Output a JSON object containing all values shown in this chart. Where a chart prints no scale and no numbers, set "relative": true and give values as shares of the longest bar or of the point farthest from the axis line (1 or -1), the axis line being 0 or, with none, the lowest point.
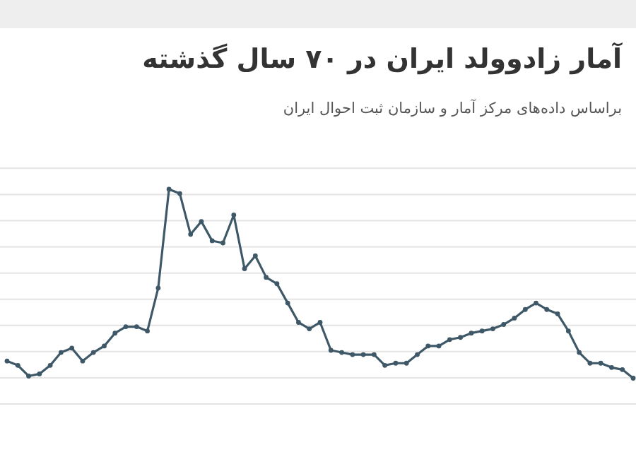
{
  "chart_data": {
    "type": "line",
    "title": "آمار زادوولد ایران در ۷۰ سال گذشته",
    "subtitle": "براساس داده‌های مرکز آمار و سازمان ثبت احوال ایران",
    "relative": true,
    "categories": [
      null,
      null,
      null,
      null,
      null,
      null,
      null,
      null,
      null,
      null,
      null,
      null,
      null,
      null,
      null,
      null,
      null,
      null,
      null,
      null,
      null,
      null,
      null,
      null,
      null,
      null,
      null,
      null,
      null,
      null,
      null,
      null,
      null,
      null,
      null,
      null,
      null,
      null,
      null,
      null,
      null,
      null,
      null,
      null,
      null,
      null,
      null,
      null,
      null,
      null,
      null,
      null,
      null,
      null,
      null,
      null,
      null,
      null,
      null
    ],
    "series": [
      {
        "color": "#3e5868",
        "values": [
          0.2,
          0.18,
          0.13,
          0.14,
          0.18,
          0.24,
          0.26,
          0.2,
          0.24,
          0.27,
          0.33,
          0.36,
          0.36,
          0.34,
          0.54,
          1,
          0.98,
          0.79,
          0.85,
          0.76,
          0.75,
          0.88,
          0.63,
          0.69,
          0.59,
          0.56,
          0.47,
          0.38,
          0.35,
          0.38,
          0.25,
          0.24,
          0.23,
          0.23,
          0.23,
          0.18,
          0.19,
          0.19,
          0.23,
          0.27,
          0.27,
          0.3,
          0.31,
          0.33,
          0.34,
          0.35,
          0.37,
          0.4,
          0.44,
          0.47,
          0.44,
          0.42,
          0.34,
          0.24,
          0.19,
          0.19,
          0.17,
          0.16,
          0.12
        ]
      }
    ],
    "grid": true,
    "marker": "circle",
    "line_style": "solid"
  }
}
